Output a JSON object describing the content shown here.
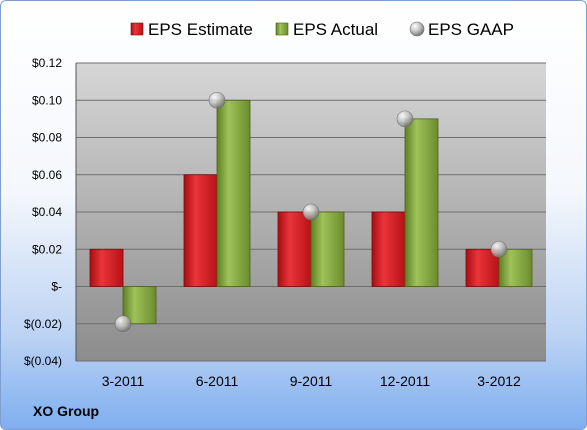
{
  "company": "XO Group",
  "colors": {
    "estimate": "#d0181e",
    "actual": "#7ea23c",
    "gaap": "#b4b4b4"
  },
  "chart_data": {
    "type": "bar",
    "title": "",
    "xlabel": "",
    "ylabel": "",
    "categories": [
      "3-2011",
      "6-2011",
      "9-2011",
      "12-2011",
      "3-2012"
    ],
    "series": [
      {
        "name": "EPS Estimate",
        "type": "bar",
        "values": [
          0.02,
          0.06,
          0.04,
          0.04,
          0.02
        ]
      },
      {
        "name": "EPS Actual",
        "type": "bar",
        "values": [
          -0.02,
          0.1,
          0.04,
          0.09,
          0.02
        ]
      },
      {
        "name": "EPS GAAP",
        "type": "scatter",
        "values": [
          -0.02,
          0.1,
          0.04,
          0.09,
          0.02
        ]
      }
    ],
    "ylim": [
      -0.04,
      0.12
    ],
    "yticks": [
      0.12,
      0.1,
      0.08,
      0.06,
      0.04,
      0.02,
      0,
      -0.02,
      -0.04
    ],
    "ytick_labels": [
      "$0.12",
      "$0.10",
      "$0.08",
      "$0.06",
      "$0.04",
      "$0.02",
      "$-",
      "$(0.02)",
      "$(0.04)"
    ],
    "grid": true,
    "legend_position": "top"
  }
}
